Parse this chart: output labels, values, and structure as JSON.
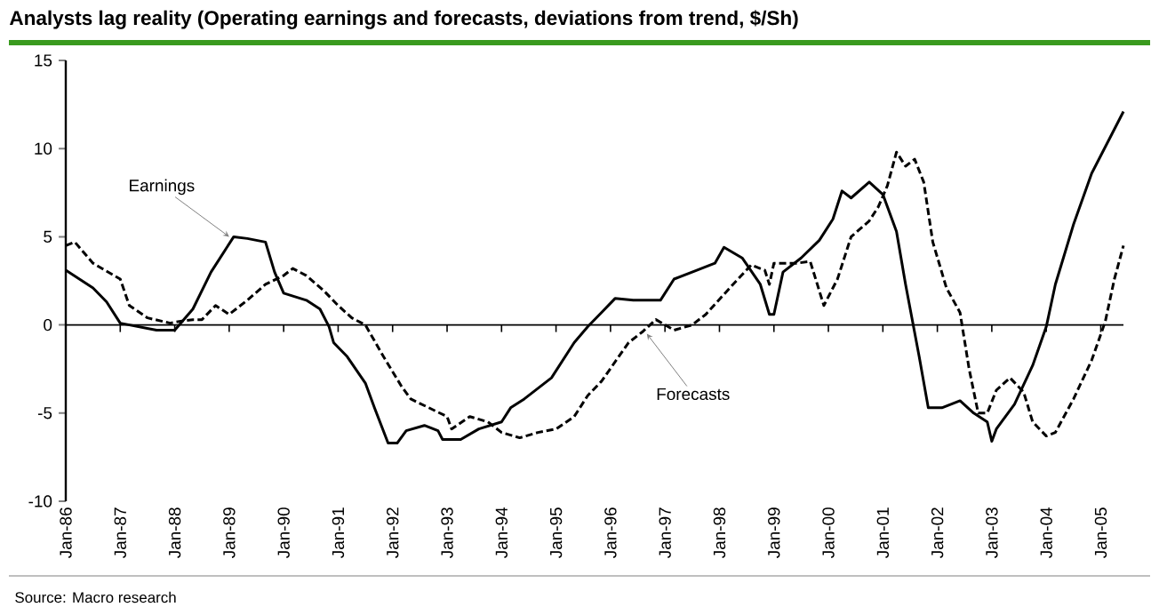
{
  "chart_data": {
    "type": "line",
    "title": "Analysts lag reality (Operating earnings and forecasts, deviations from trend, $/Sh)",
    "xlim": [
      "1986-01",
      "2005-06"
    ],
    "ylim": [
      -10,
      15
    ],
    "yticks": [
      -10,
      -5,
      0,
      5,
      10,
      15
    ],
    "xticks": [
      {
        "value": "1986-01",
        "label": "Jan-86"
      },
      {
        "value": "1987-01",
        "label": "Jan-87"
      },
      {
        "value": "1988-01",
        "label": "Jan-88"
      },
      {
        "value": "1989-01",
        "label": "Jan-89"
      },
      {
        "value": "1990-01",
        "label": "Jan-90"
      },
      {
        "value": "1991-01",
        "label": "Jan-91"
      },
      {
        "value": "1992-01",
        "label": "Jan-92"
      },
      {
        "value": "1993-01",
        "label": "Jan-93"
      },
      {
        "value": "1994-01",
        "label": "Jan-94"
      },
      {
        "value": "1995-01",
        "label": "Jan-95"
      },
      {
        "value": "1996-01",
        "label": "Jan-96"
      },
      {
        "value": "1997-01",
        "label": "Jan-97"
      },
      {
        "value": "1998-01",
        "label": "Jan-98"
      },
      {
        "value": "1999-01",
        "label": "Jan-99"
      },
      {
        "value": "2000-01",
        "label": "Jan-00"
      },
      {
        "value": "2001-01",
        "label": "Jan-01"
      },
      {
        "value": "2002-01",
        "label": "Jan-02"
      },
      {
        "value": "2003-01",
        "label": "Jan-03"
      },
      {
        "value": "2004-01",
        "label": "Jan-04"
      },
      {
        "value": "2005-01",
        "label": "Jan-05"
      }
    ],
    "grid": false,
    "marker": "none",
    "ref_lines": [
      {
        "axis": "y",
        "value": 0,
        "color": "#000000"
      }
    ],
    "series": [
      {
        "color": "#000000",
        "line_style": "solid",
        "x": [
          "1986-01",
          "1986-07",
          "1986-10",
          "1987-01",
          "1987-05",
          "1987-09",
          "1988-01",
          "1988-05",
          "1988-09",
          "1989-02",
          "1989-05",
          "1989-09",
          "1989-11",
          "1990-01",
          "1990-06",
          "1990-09",
          "1990-11",
          "1990-12",
          "1991-03",
          "1991-07",
          "1991-09",
          "1991-12",
          "1992-02",
          "1992-04",
          "1992-08",
          "1992-11",
          "1992-12",
          "1993-04",
          "1993-08",
          "1994-01",
          "1994-03",
          "1994-06",
          "1994-12",
          "1995-05",
          "1995-08",
          "1995-11",
          "1996-02",
          "1996-06",
          "1996-12",
          "1997-03",
          "1997-08",
          "1997-12",
          "1998-02",
          "1998-06",
          "1998-10",
          "1998-12",
          "1999-01",
          "1999-03",
          "1999-07",
          "1999-11",
          "2000-02",
          "2000-04",
          "2000-06",
          "2000-10",
          "2001-01",
          "2001-04",
          "2001-06",
          "2001-09",
          "2001-11",
          "2002-02",
          "2002-06",
          "2002-09",
          "2002-12",
          "2003-01",
          "2003-02",
          "2003-06",
          "2003-10",
          "2004-01",
          "2004-03",
          "2004-07",
          "2004-11",
          "2005-02",
          "2005-06"
        ],
        "values": [
          3.1,
          2.1,
          1.3,
          0.1,
          -0.1,
          -0.3,
          -0.3,
          0.9,
          3.0,
          5.0,
          4.9,
          4.7,
          3.0,
          1.8,
          1.4,
          0.9,
          -0.1,
          -1.0,
          -1.8,
          -3.3,
          -4.7,
          -6.7,
          -6.7,
          -6.0,
          -5.7,
          -6.0,
          -6.5,
          -6.5,
          -5.9,
          -5.5,
          -4.7,
          -4.2,
          -3.0,
          -1.0,
          -0.1,
          0.7,
          1.5,
          1.4,
          1.4,
          2.6,
          3.1,
          3.5,
          4.4,
          3.8,
          2.3,
          0.6,
          0.6,
          3.0,
          3.8,
          4.8,
          6.0,
          7.6,
          7.2,
          8.1,
          7.4,
          5.3,
          2.3,
          -1.8,
          -4.7,
          -4.7,
          -4.3,
          -5.0,
          -5.5,
          -6.6,
          -5.9,
          -4.5,
          -2.3,
          -0.1,
          2.3,
          5.7,
          8.6,
          10.1,
          12.1
        ]
      },
      {
        "color": "#000000",
        "line_style": "dashed",
        "x": [
          "1986-01",
          "1986-03",
          "1986-07",
          "1987-01",
          "1987-03",
          "1987-07",
          "1987-12",
          "1988-02",
          "1988-05",
          "1988-07",
          "1988-10",
          "1989-01",
          "1989-05",
          "1989-09",
          "1990-01",
          "1990-03",
          "1990-06",
          "1990-10",
          "1991-01",
          "1991-04",
          "1991-07",
          "1991-11",
          "1992-03",
          "1992-05",
          "1992-09",
          "1993-01",
          "1993-02",
          "1993-06",
          "1993-10",
          "1994-01",
          "1994-05",
          "1994-09",
          "1995-01",
          "1995-05",
          "1995-08",
          "1995-11",
          "1996-05",
          "1996-08",
          "1996-11",
          "1997-03",
          "1997-07",
          "1997-10",
          "1998-04",
          "1998-08",
          "1998-11",
          "1998-12",
          "1999-01",
          "1999-06",
          "1999-09",
          "1999-12",
          "2000-03",
          "2000-06",
          "2000-10",
          "2000-12",
          "2001-02",
          "2001-04",
          "2001-06",
          "2001-08",
          "2001-10",
          "2001-12",
          "2002-03",
          "2002-06",
          "2002-08",
          "2002-10",
          "2002-12",
          "2003-02",
          "2003-05",
          "2003-08",
          "2003-10",
          "2004-01",
          "2004-03",
          "2004-07",
          "2004-11",
          "2005-02",
          "2005-04",
          "2005-06"
        ],
        "values": [
          4.5,
          4.7,
          3.5,
          2.6,
          1.1,
          0.4,
          0.1,
          0.2,
          0.3,
          0.3,
          1.1,
          0.6,
          1.4,
          2.3,
          2.8,
          3.2,
          2.8,
          1.9,
          1.1,
          0.4,
          0.0,
          -1.8,
          -3.5,
          -4.2,
          -4.7,
          -5.2,
          -5.9,
          -5.2,
          -5.5,
          -6.1,
          -6.4,
          -6.1,
          -5.9,
          -5.2,
          -4.0,
          -3.2,
          -1.0,
          -0.4,
          0.3,
          -0.3,
          0.0,
          0.6,
          2.3,
          3.4,
          3.1,
          2.3,
          3.5,
          3.5,
          3.6,
          1.1,
          2.6,
          5.0,
          5.9,
          6.7,
          7.9,
          9.8,
          9.0,
          9.4,
          8.1,
          4.7,
          2.1,
          0.7,
          -2.5,
          -5.0,
          -5.0,
          -3.7,
          -3.0,
          -3.8,
          -5.5,
          -6.3,
          -6.1,
          -4.2,
          -2.0,
          0.2,
          2.6,
          4.5
        ]
      }
    ],
    "annotations": [
      {
        "text": "Earnings",
        "x": "1989-01",
        "y": 5.0
      },
      {
        "text": "Forecasts",
        "x": "1996-09",
        "y": -0.5
      },
      "Source: Macro research"
    ]
  }
}
